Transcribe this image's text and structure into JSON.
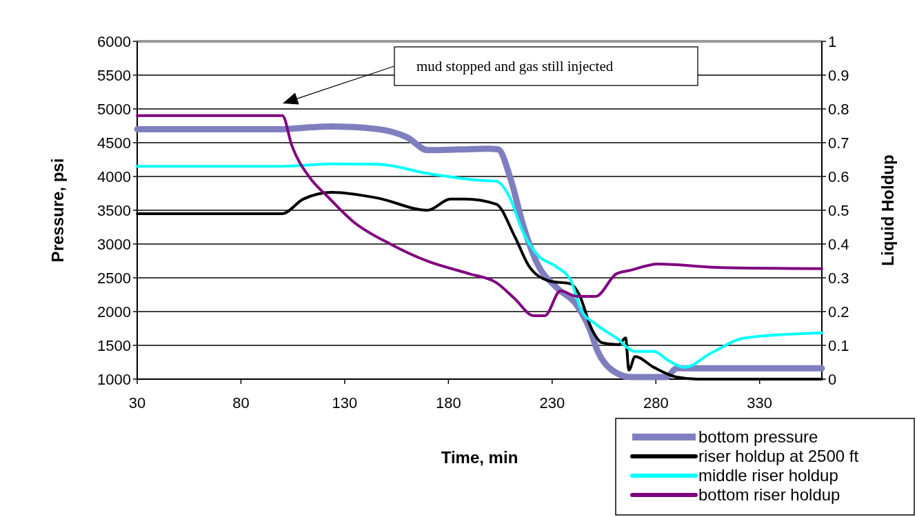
{
  "chart_data": {
    "type": "line",
    "xlabel": "Time, min",
    "ylabel": "Pressure, psi",
    "y2label": "Liquid Holdup",
    "xlim": [
      30,
      360
    ],
    "xticks": [
      30,
      80,
      130,
      180,
      230,
      280,
      330
    ],
    "ylim": [
      1000,
      6000
    ],
    "yticks": [
      1000,
      1500,
      2000,
      2500,
      3000,
      3500,
      4000,
      4500,
      5000,
      5500,
      6000
    ],
    "y2lim": [
      0,
      1
    ],
    "y2ticks": [
      0,
      0.1,
      0.2,
      0.3,
      0.4,
      0.5,
      0.6,
      0.7,
      0.8,
      0.9,
      1
    ],
    "grid": "y",
    "legend": "bottom right",
    "marker": "none",
    "line_style": "solid",
    "annotations": [
      "mud stopped and gas still injected"
    ],
    "series": [
      {
        "name": "bottom pressure",
        "color": "#7f7fbf",
        "x": [
          30,
          100,
          110,
          124,
          146,
          160,
          170,
          185,
          199,
          204,
          210,
          216,
          223,
          232,
          242,
          248,
          252,
          259,
          268,
          285,
          290,
          360
        ],
        "values": [
          4700,
          4700,
          4720,
          4740,
          4700,
          4580,
          4390,
          4400,
          4410,
          4400,
          3960,
          3280,
          2700,
          2360,
          2090,
          1750,
          1410,
          1130,
          1030,
          1030,
          1160,
          1160
        ]
      },
      {
        "name": "riser holdup at 2500 ft",
        "color": "#000000",
        "axis": "y2",
        "x": [
          30,
          100,
          110,
          124,
          146,
          170,
          181,
          188,
          203,
          212,
          219,
          229,
          239,
          243,
          249,
          254,
          262,
          265.4,
          267,
          270,
          279,
          290,
          300,
          360
        ],
        "values": [
          0.49,
          0.49,
          0.533,
          0.553,
          0.536,
          0.5,
          0.533,
          0.533,
          0.518,
          0.422,
          0.333,
          0.29,
          0.282,
          0.251,
          0.149,
          0.108,
          0.102,
          0.122,
          0.027,
          0.067,
          0.035,
          0.006,
          0,
          0
        ]
      },
      {
        "name": "middle riser holdup",
        "color": "#00ffff",
        "axis": "y2",
        "x": [
          30,
          100,
          124,
          146,
          170,
          199,
          203,
          209,
          216,
          223,
          232,
          239,
          244,
          251,
          261,
          270,
          279,
          286,
          294,
          306,
          323,
          360
        ],
        "values": [
          0.63,
          0.63,
          0.637,
          0.636,
          0.609,
          0.587,
          0.586,
          0.545,
          0.435,
          0.367,
          0.333,
          0.292,
          0.204,
          0.163,
          0.122,
          0.082,
          0.082,
          0.055,
          0.035,
          0.075,
          0.122,
          0.137
        ]
      },
      {
        "name": "bottom riser holdup",
        "color": "#800080",
        "axis": "y2",
        "x": [
          30,
          100,
          104.5,
          113,
          122,
          134,
          152,
          170,
          190,
          203,
          212,
          221,
          226.5,
          234,
          242,
          251,
          261,
          267.5,
          281,
          312,
          360
        ],
        "values": [
          0.78,
          0.78,
          0.692,
          0.598,
          0.539,
          0.467,
          0.4,
          0.349,
          0.312,
          0.286,
          0.238,
          0.188,
          0.188,
          0.261,
          0.245,
          0.245,
          0.312,
          0.322,
          0.341,
          0.33,
          0.327
        ]
      }
    ]
  }
}
